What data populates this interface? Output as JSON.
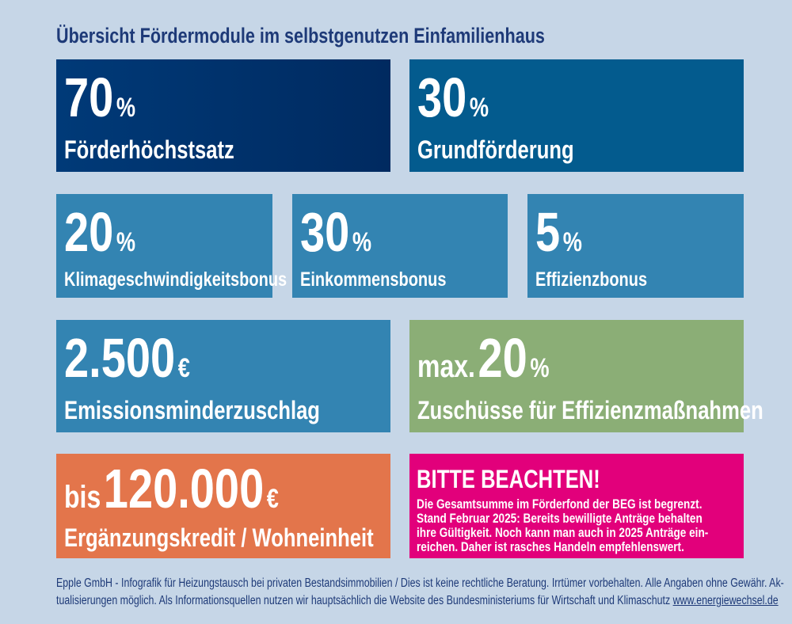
{
  "title": "Übersicht Fördermodule im selbstgenutzen Einfamilienhaus",
  "colors": {
    "background": "#c6d6e7",
    "navy": "#002a60",
    "blue": "#035b8e",
    "light_blue": "#3384b2",
    "green": "#8bae76",
    "orange": "#e3754b",
    "pink": "#e2007b"
  },
  "tiles": [
    {
      "value": "70",
      "unit": "%",
      "label": "Förderhöchstsatz"
    },
    {
      "value": "30",
      "unit": "%",
      "label": "Grundförderung"
    },
    {
      "value": "20",
      "unit": "%",
      "label": "Klimageschwindigkeitsbonus"
    },
    {
      "value": "30",
      "unit": "%",
      "label": "Einkommensbonus"
    },
    {
      "value": "5",
      "unit": "%",
      "label": "Effizienzbonus"
    },
    {
      "value": "2.500",
      "unit": "€",
      "label": "Emissionsminderzuschlag"
    },
    {
      "prefix": "max.",
      "value": "20",
      "unit": "%",
      "label": "Zuschüsse für Effizienzmaßnahmen"
    },
    {
      "prefix": "bis",
      "value": "120.000",
      "unit": "€",
      "label": "Ergänzungskredit / Wohneinheit"
    }
  ],
  "notice": {
    "heading": "BITTE BEACHTEN!",
    "lines": [
      "Die Gesamtsumme im Förderfond der BEG ist begrenzt.",
      "Stand Februar 2025: Bereits bewilligte Anträge behalten",
      "ihre Gültigkeit. Noch kann man auch in 2025 Anträge ein-",
      "reichen. Daher ist rasches Handeln empfehlenswert."
    ]
  },
  "footer": {
    "line1": "Epple GmbH - Infografik für Heizungstausch bei privaten Bestandsimmobilien / Dies ist keine rechtliche Beratung. Irrtümer vorbehalten. Alle Angaben ohne Gewähr. Ak-",
    "line2": "tualisierungen möglich. Als Informationsquellen nutzen wir hauptsächlich die Website des Bundesministeriums für Wirtschaft und Klimaschutz ",
    "link": "www.energiewechsel.de"
  }
}
